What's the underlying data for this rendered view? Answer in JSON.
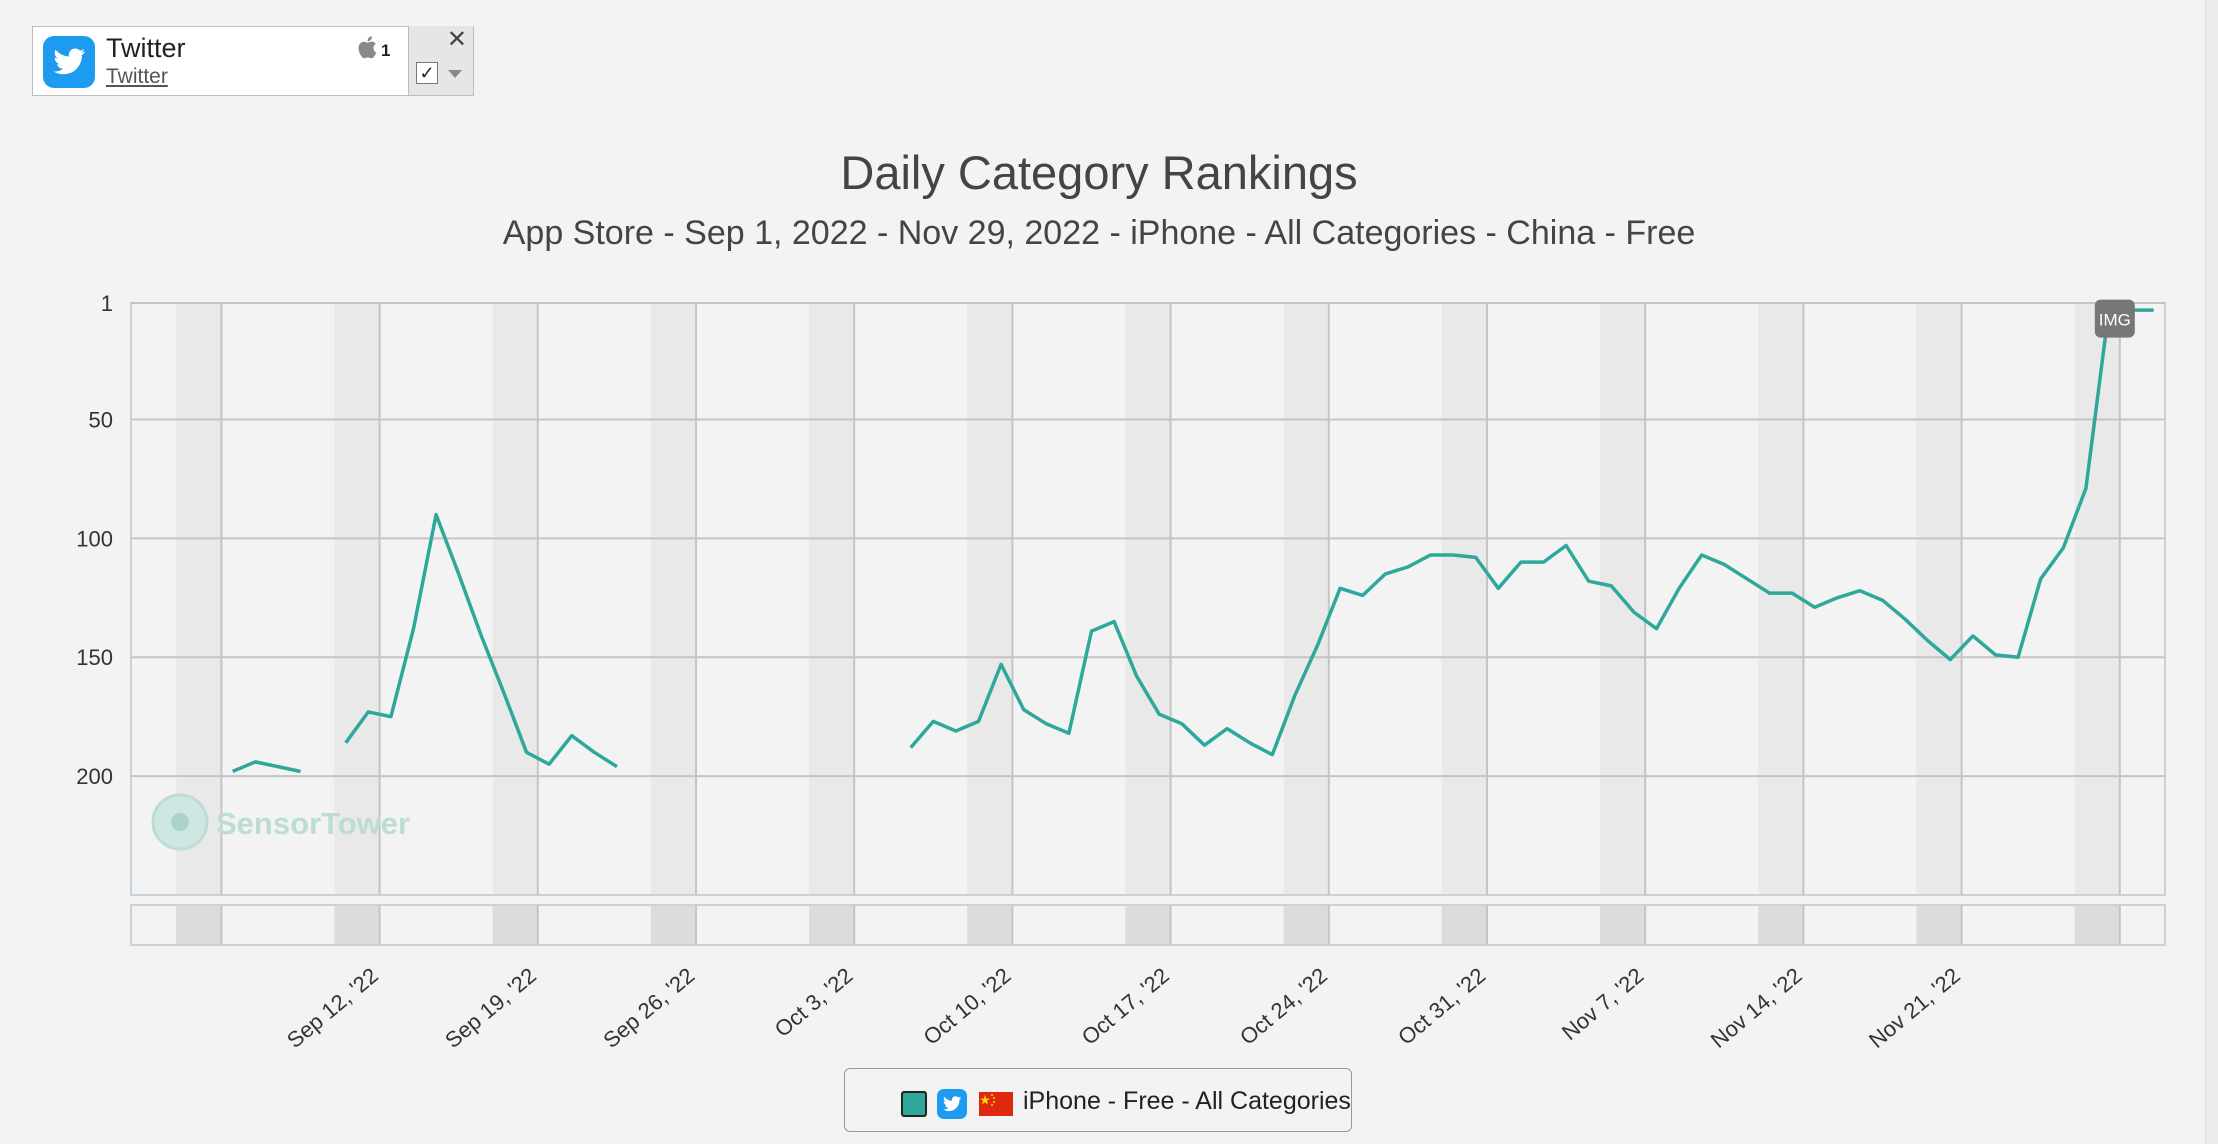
{
  "app": {
    "name": "Twitter",
    "publisher": "Twitter",
    "platform_icon": "apple-icon",
    "platform_count": "1",
    "brand_color": "#1d9bf0",
    "close_label": "✕",
    "checkbox_label": "✓"
  },
  "chart_data": {
    "type": "line",
    "title": "Daily Category Rankings",
    "subtitle": "App Store - Sep 1, 2022 - Nov 29, 2022 - iPhone - All Categories - China - Free",
    "ylim": [
      250,
      1
    ],
    "y_reversed": true,
    "y_ticks": [
      "1",
      "50",
      "100",
      "150",
      "200"
    ],
    "x_range": [
      "2022-09-01",
      "2022-11-29"
    ],
    "x_ticks": [
      "Sep 12, '22",
      "Sep 19, '22",
      "Sep 26, '22",
      "Oct 3, '22",
      "Oct 10, '22",
      "Oct 17, '22",
      "Oct 24, '22",
      "Oct 31, '22",
      "Nov 7, '22",
      "Nov 14, '22",
      "Nov 21, '22"
    ],
    "weekends_shaded": true,
    "grid": true,
    "series": [
      {
        "name": "iPhone - Free - All Categories",
        "color": "#2ea89a",
        "points": [
          [
            "2022-09-05",
            198
          ],
          [
            "2022-09-06",
            194
          ],
          [
            "2022-09-07",
            196
          ],
          [
            "2022-09-08",
            198
          ],
          [
            "2022-09-10",
            186
          ],
          [
            "2022-09-11",
            173
          ],
          [
            "2022-09-12",
            175
          ],
          [
            "2022-09-13",
            138
          ],
          [
            "2022-09-14",
            90
          ],
          [
            "2022-09-15",
            115
          ],
          [
            "2022-09-16",
            141
          ],
          [
            "2022-09-17",
            165
          ],
          [
            "2022-09-18",
            190
          ],
          [
            "2022-09-19",
            195
          ],
          [
            "2022-09-20",
            183
          ],
          [
            "2022-09-21",
            190
          ],
          [
            "2022-09-22",
            196
          ],
          [
            "2022-10-05",
            188
          ],
          [
            "2022-10-06",
            177
          ],
          [
            "2022-10-07",
            181
          ],
          [
            "2022-10-08",
            177
          ],
          [
            "2022-10-09",
            153
          ],
          [
            "2022-10-10",
            172
          ],
          [
            "2022-10-11",
            178
          ],
          [
            "2022-10-12",
            182
          ],
          [
            "2022-10-13",
            139
          ],
          [
            "2022-10-14",
            135
          ],
          [
            "2022-10-15",
            158
          ],
          [
            "2022-10-16",
            174
          ],
          [
            "2022-10-17",
            178
          ],
          [
            "2022-10-18",
            187
          ],
          [
            "2022-10-19",
            180
          ],
          [
            "2022-10-20",
            186
          ],
          [
            "2022-10-21",
            191
          ],
          [
            "2022-10-22",
            166
          ],
          [
            "2022-10-23",
            145
          ],
          [
            "2022-10-24",
            121
          ],
          [
            "2022-10-25",
            124
          ],
          [
            "2022-10-26",
            115
          ],
          [
            "2022-10-27",
            112
          ],
          [
            "2022-10-28",
            107
          ],
          [
            "2022-10-29",
            107
          ],
          [
            "2022-10-30",
            108
          ],
          [
            "2022-10-31",
            121
          ],
          [
            "2022-11-01",
            110
          ],
          [
            "2022-11-02",
            110
          ],
          [
            "2022-11-03",
            103
          ],
          [
            "2022-11-04",
            118
          ],
          [
            "2022-11-05",
            120
          ],
          [
            "2022-11-06",
            131
          ],
          [
            "2022-11-07",
            138
          ],
          [
            "2022-11-08",
            121
          ],
          [
            "2022-11-09",
            107
          ],
          [
            "2022-11-10",
            111
          ],
          [
            "2022-11-11",
            117
          ],
          [
            "2022-11-12",
            123
          ],
          [
            "2022-11-13",
            123
          ],
          [
            "2022-11-14",
            129
          ],
          [
            "2022-11-15",
            125
          ],
          [
            "2022-11-16",
            122
          ],
          [
            "2022-11-17",
            126
          ],
          [
            "2022-11-18",
            134
          ],
          [
            "2022-11-19",
            143
          ],
          [
            "2022-11-20",
            151
          ],
          [
            "2022-11-21",
            141
          ],
          [
            "2022-11-22",
            149
          ],
          [
            "2022-11-23",
            150
          ],
          [
            "2022-11-24",
            117
          ],
          [
            "2022-11-25",
            104
          ],
          [
            "2022-11-26",
            79
          ],
          [
            "2022-11-27",
            5
          ],
          [
            "2022-11-28",
            4
          ],
          [
            "2022-11-29",
            4
          ]
        ]
      }
    ],
    "annotation": {
      "label": "IMG",
      "date": "2022-11-28",
      "rank": 8
    },
    "watermark": "SensorTower"
  }
}
